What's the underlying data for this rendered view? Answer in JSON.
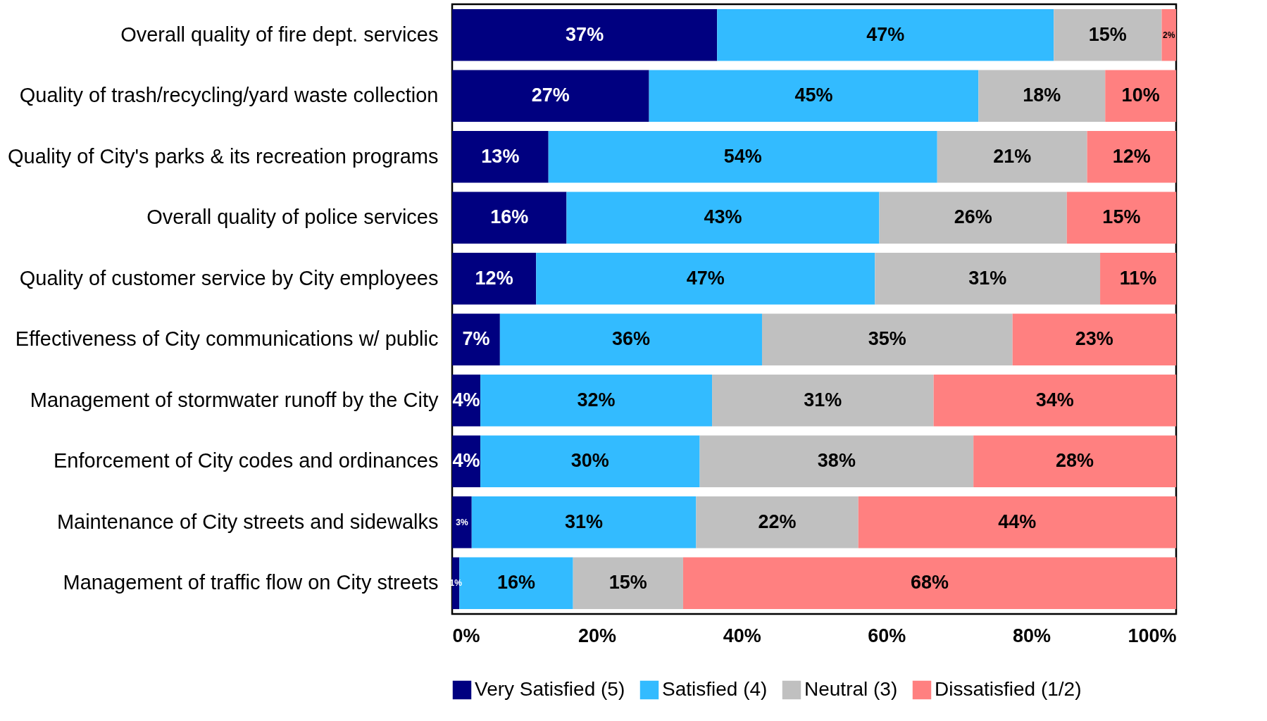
{
  "chart_data": {
    "type": "bar",
    "orientation": "horizontal",
    "stacked": true,
    "categories": [
      "Overall quality of fire dept. services",
      "Quality of trash/recycling/yard waste collection",
      "Quality of City's parks & its recreation programs",
      "Overall quality of police services",
      "Quality of customer service by City employees",
      "Effectiveness of City communications w/ public",
      "Management of stormwater runoff by the City",
      "Enforcement of City codes and ordinances",
      "Maintenance of City streets and sidewalks",
      "Management of traffic flow on City streets"
    ],
    "series": [
      {
        "name": "Very Satisfied (5)",
        "color": "#000080",
        "values": [
          36.6,
          27.2,
          13.3,
          15.8,
          11.6,
          6.6,
          3.9,
          3.9,
          2.7,
          1.0
        ],
        "value_labels": [
          "37%",
          "27%",
          "13%",
          "16%",
          "12%",
          "7%",
          "4%",
          "4%",
          "3%",
          "1%"
        ]
      },
      {
        "name": "Satisfied (4)",
        "color": "#33bbff",
        "values": [
          46.5,
          45.5,
          53.7,
          43.2,
          46.8,
          36.2,
          32.0,
          30.3,
          31.0,
          15.7
        ],
        "value_labels": [
          "47%",
          "45%",
          "54%",
          "43%",
          "47%",
          "36%",
          "32%",
          "30%",
          "31%",
          "16%"
        ]
      },
      {
        "name": "Neutral (3)",
        "color": "#c0c0c0",
        "values": [
          14.9,
          17.5,
          20.7,
          25.9,
          31.1,
          34.6,
          30.6,
          37.8,
          22.4,
          15.2
        ],
        "value_labels": [
          "15%",
          "18%",
          "21%",
          "26%",
          "31%",
          "35%",
          "31%",
          "38%",
          "22%",
          "15%"
        ]
      },
      {
        "name": "Dissatisfied (1/2)",
        "color": "#ff8080",
        "values": [
          2.0,
          9.8,
          12.3,
          15.1,
          10.5,
          22.6,
          33.5,
          28.0,
          43.9,
          68.1
        ],
        "value_labels": [
          "2%",
          "10%",
          "12%",
          "15%",
          "11%",
          "23%",
          "34%",
          "28%",
          "44%",
          "68%"
        ]
      }
    ],
    "xlim": [
      0,
      100
    ],
    "xticks": [
      {
        "value": 0,
        "label": "0%"
      },
      {
        "value": 20,
        "label": "20%"
      },
      {
        "value": 40,
        "label": "40%"
      },
      {
        "value": 60,
        "label": "60%"
      },
      {
        "value": 80,
        "label": "80%"
      },
      {
        "value": 100,
        "label": "100%"
      }
    ],
    "grid": false,
    "legend": "bottom"
  }
}
